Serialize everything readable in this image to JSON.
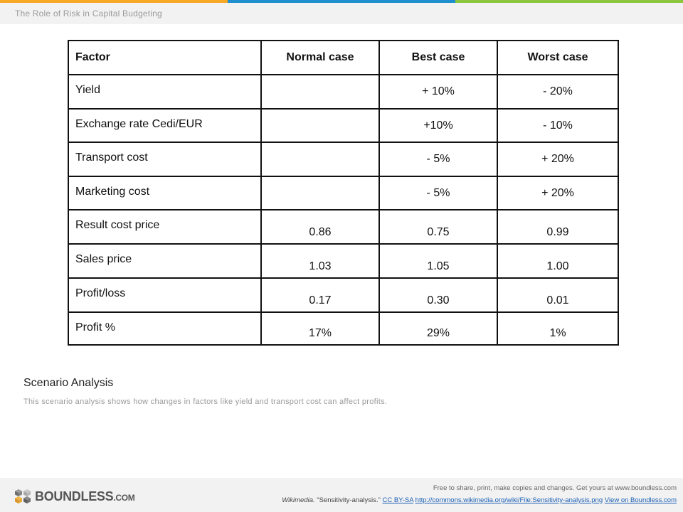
{
  "header": {
    "title": "The Role of Risk in Capital Budgeting",
    "accent_colors": [
      "#f7a824",
      "#1f8fcf",
      "#8cc63f"
    ]
  },
  "table": {
    "headers": [
      "Factor",
      "Normal case",
      "Best case",
      "Worst case"
    ],
    "rows": [
      [
        "Yield",
        "",
        "+ 10%",
        "- 20%"
      ],
      [
        "Exchange rate Cedi/EUR",
        "",
        "+10%",
        "- 10%"
      ],
      [
        "Transport cost",
        "",
        "- 5%",
        "+ 20%"
      ],
      [
        "Marketing cost",
        "",
        "- 5%",
        "+ 20%"
      ],
      [
        "Result cost price",
        "0.86",
        "0.75",
        "0.99"
      ],
      [
        "Sales price",
        "1.03",
        "1.05",
        "1.00"
      ],
      [
        "Profit/loss",
        "0.17",
        "0.30",
        "0.01"
      ],
      [
        "Profit %",
        "17%",
        "29%",
        "1%"
      ]
    ]
  },
  "caption": {
    "title": "Scenario Analysis",
    "text": "This scenario analysis shows how changes in factors like yield and transport cost can affect profits."
  },
  "footer": {
    "logo_text": "BOUNDLESS",
    "logo_suffix": ".COM",
    "line1": "Free to share, print, make copies and changes. Get yours at www.boundless.com",
    "source": "Wikimedia.",
    "attribution": " \"Sensitivity-analysis.\" ",
    "license_link": "CC BY-SA",
    "url_link": "http://commons.wikimedia.org/wiki/File:Sensitivity-analysis.png",
    "view_link": "View on Boundless.com"
  }
}
